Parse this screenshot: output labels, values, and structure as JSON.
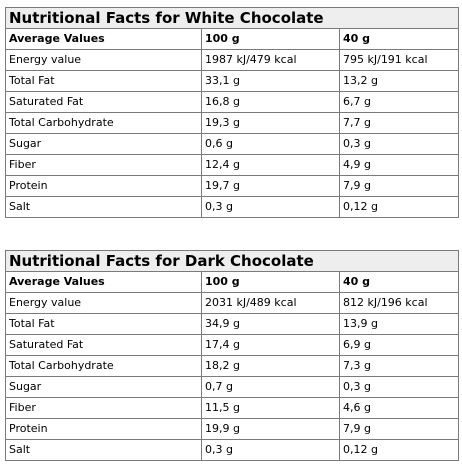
{
  "tables": [
    {
      "title": "Nutritional Facts for White Chocolate",
      "headers": [
        "Average Values",
        "100 g",
        "40 g"
      ],
      "rows": [
        [
          "Energy value",
          "1987 kJ/479 kcal",
          "795 kJ/191 kcal"
        ],
        [
          "Total Fat",
          "33,1 g",
          "13,2 g"
        ],
        [
          "Saturated Fat",
          "16,8 g",
          "6,7 g"
        ],
        [
          "Total Carbohydrate",
          "19,3 g",
          "7,7 g"
        ],
        [
          "Sugar",
          "0,6 g",
          "0,3 g"
        ],
        [
          "Fiber",
          "12,4 g",
          "4,9 g"
        ],
        [
          "Protein",
          "19,7 g",
          "7,9 g"
        ],
        [
          "Salt",
          "0,3 g",
          "0,12 g"
        ]
      ]
    },
    {
      "title": "Nutritional Facts for Dark Chocolate",
      "headers": [
        "Average Values",
        "100 g",
        "40 g"
      ],
      "rows": [
        [
          "Energy value",
          "2031 kJ/489 kcal",
          "812 kJ/196 kcal"
        ],
        [
          "Total Fat",
          "34,9 g",
          "13,9 g"
        ],
        [
          "Saturated Fat",
          "17,4 g",
          "6,9 g"
        ],
        [
          "Total Carbohydrate",
          "18,2 g",
          "7,3 g"
        ],
        [
          "Sugar",
          "0,7 g",
          "0,3 g"
        ],
        [
          "Fiber",
          "11,5 g",
          "4,6 g"
        ],
        [
          "Protein",
          "19,9 g",
          "7,9 g"
        ],
        [
          "Salt",
          "0,3 g",
          "0,12 g"
        ]
      ]
    }
  ]
}
